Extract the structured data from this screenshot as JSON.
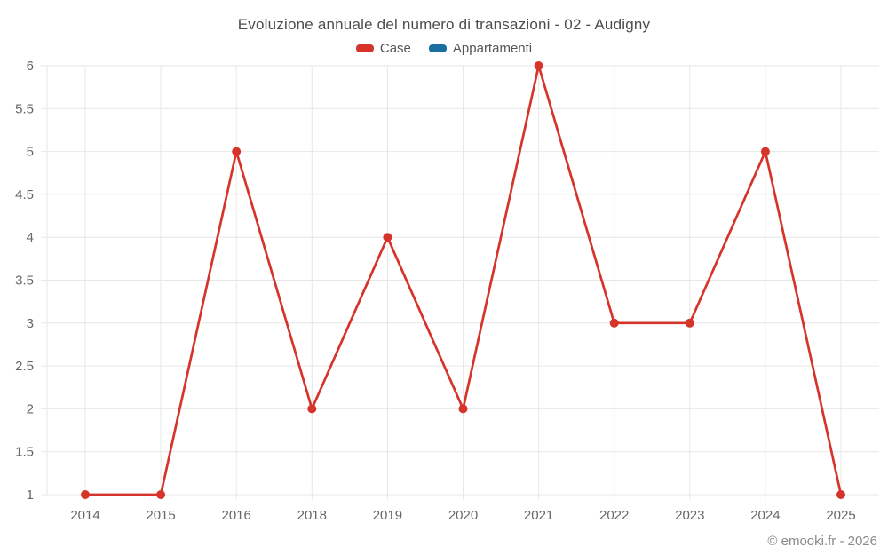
{
  "page": {
    "footer": "© emooki.fr - 2026"
  },
  "legend": {
    "items": [
      {
        "label": "Case",
        "color": "#d6342b"
      },
      {
        "label": "Appartamenti",
        "color": "#1a6da0"
      }
    ]
  },
  "colors": {
    "background": "#ffffff",
    "grid": "#e7e7e7",
    "axis_text": "#666666",
    "title_text": "#4d4d4d",
    "footer_text": "#8a8a8a",
    "case_red": "#d6342b",
    "appartamenti_blue": "#1a6da0"
  },
  "chart_data": {
    "type": "line",
    "title": "Evoluzione annuale del numero di transazioni - 02 - Audigny",
    "xlabel": "",
    "ylabel": "",
    "categories": [
      "2014",
      "2015",
      "2016",
      "2018",
      "2019",
      "2020",
      "2021",
      "2022",
      "2023",
      "2024",
      "2025"
    ],
    "series": [
      {
        "name": "Case",
        "color": "#d6342b",
        "marker": "circle",
        "values": [
          1,
          1,
          5,
          2,
          4,
          2,
          6,
          3,
          3,
          5,
          1
        ]
      },
      {
        "name": "Appartamenti",
        "color": "#1a6da0",
        "marker": "circle",
        "values": []
      }
    ],
    "ylim": [
      1,
      6
    ],
    "yticks": [
      "1",
      "1.5",
      "2",
      "2.5",
      "3",
      "3.5",
      "4",
      "4.5",
      "5",
      "5.5",
      "6"
    ],
    "grid": true,
    "legend_position": "top"
  }
}
